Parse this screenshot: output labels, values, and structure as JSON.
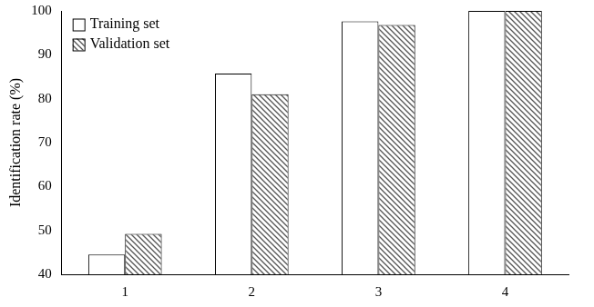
{
  "chart_data": {
    "type": "bar",
    "y_label": "Identification rate (%)",
    "categories": [
      "1",
      "2",
      "3",
      "4"
    ],
    "series": [
      {
        "name": "Training set",
        "color": "#ffffff",
        "values": [
          44.5,
          85.7,
          97.6,
          100
        ]
      },
      {
        "name": "Validation set",
        "color": "#555555",
        "values": [
          49.2,
          81,
          96.8,
          100
        ]
      }
    ],
    "ylim": [
      40,
      100
    ],
    "yticks": [
      40,
      50,
      60,
      70,
      80,
      90,
      100
    ],
    "grid": false,
    "legend": "upper left"
  }
}
